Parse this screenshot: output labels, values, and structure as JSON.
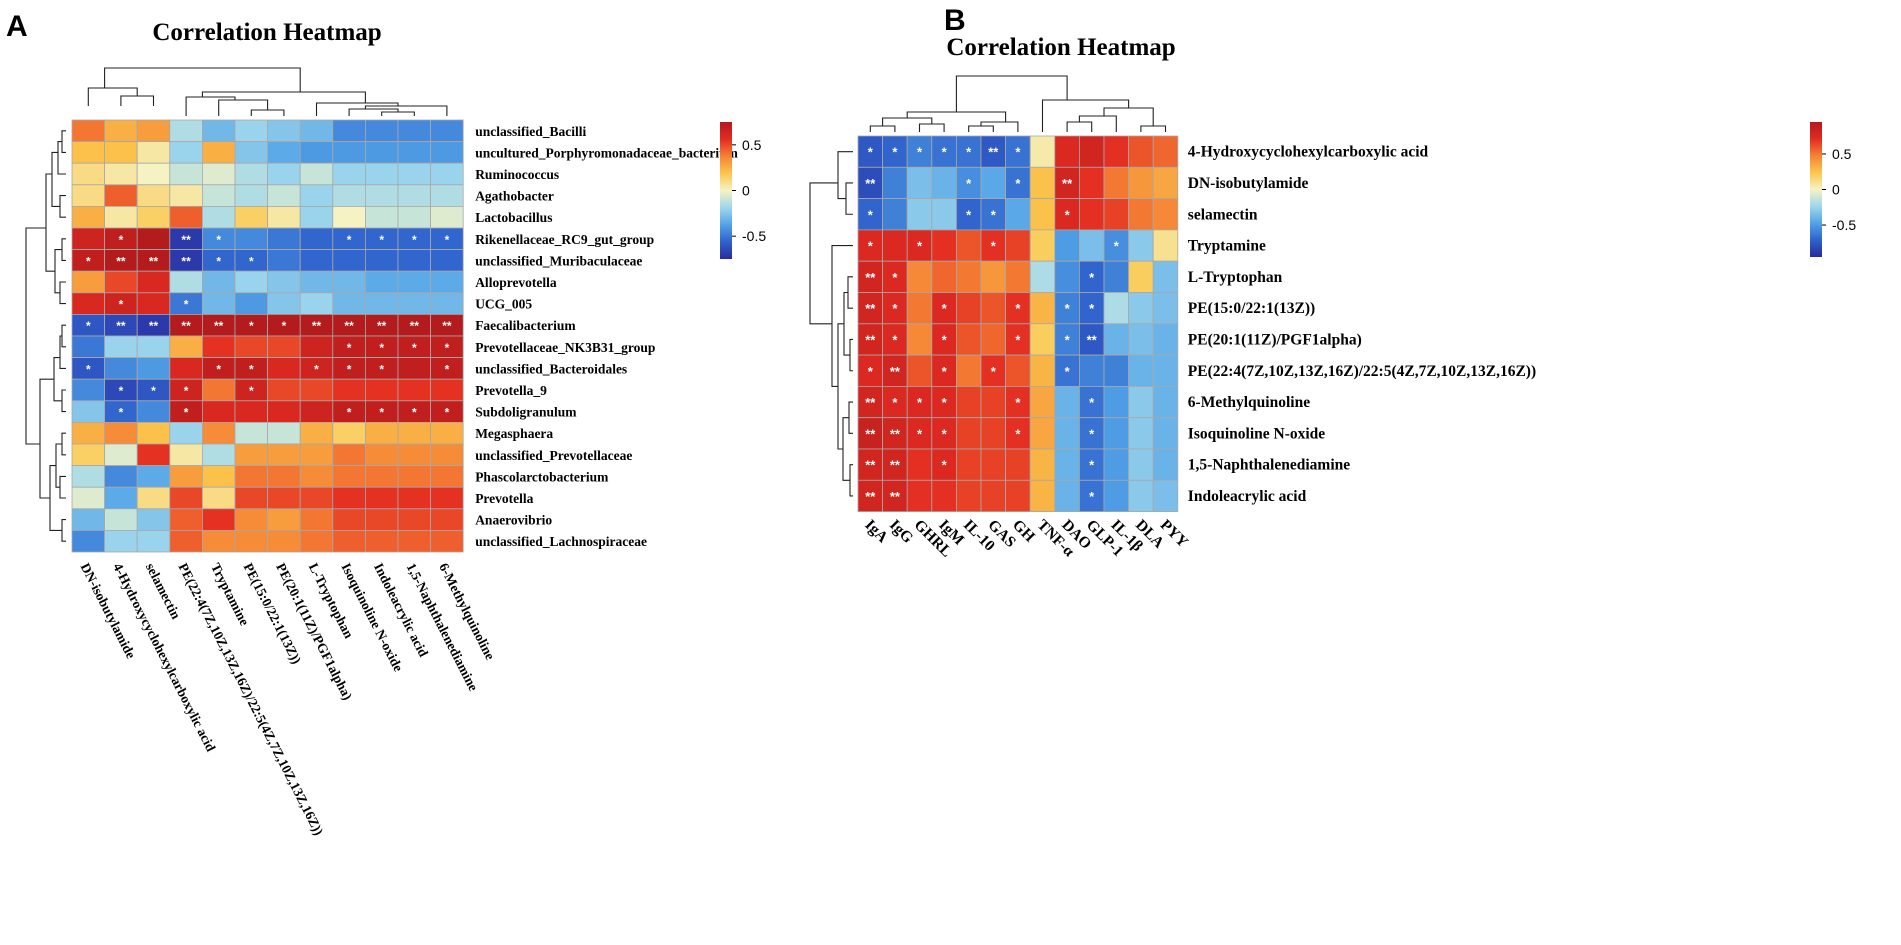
{
  "palette": [
    "#2a2a9f",
    "#2f62cc",
    "#52a3e6",
    "#9fd6ec",
    "#f5f3c4",
    "#fbc64c",
    "#f58235",
    "#e32b21",
    "#b31b1d"
  ],
  "chart_data": [
    {
      "panel": "A",
      "type": "heatmap",
      "title": "Correlation Heatmap",
      "rows": [
        "unclassified_Bacilli",
        "uncultured_Porphyromonadaceae_bacterium",
        "Ruminococcus",
        "Agathobacter",
        "Lactobacillus",
        "Rikenellaceae_RC9_gut_group",
        "unclassified_Muribaculaceae",
        "Alloprevotella",
        "UCG_005",
        "Faecalibacterium",
        "Prevotellaceae_NK3B31_group",
        "unclassified_Bacteroidales",
        "Prevotella_9",
        "Subdoligranulum",
        "Megasphaera",
        "unclassified_Prevotellaceae",
        "Phascolarctobacterium",
        "Prevotella",
        "Anaerovibrio",
        "unclassified_Lachnospiraceae"
      ],
      "columns": [
        "DN-isobutylamide",
        "4-Hydroxycyclohexylcarboxylic acid",
        "selamectin",
        "PE(22:4(7Z,10Z,13Z,16Z)/22:5(4Z,7Z,10Z,13Z,16Z))",
        "Tryptamine",
        "PE(15:0/22:1(13Z))",
        "PE(20:1(11Z)/PGF1alpha)",
        "L-Tryptophan",
        "Isoquinoline N-oxide",
        "Indoleacrylic acid",
        "1,5-Naphthalenediamine",
        "6-Methylquinoline"
      ],
      "values": [
        [
          0.4,
          0.25,
          0.3,
          -0.15,
          -0.3,
          -0.2,
          -0.25,
          -0.3,
          -0.45,
          -0.45,
          -0.45,
          -0.45
        ],
        [
          0.2,
          0.2,
          0.05,
          -0.2,
          0.25,
          -0.25,
          -0.35,
          -0.4,
          -0.4,
          -0.4,
          -0.4,
          -0.4
        ],
        [
          0.1,
          0.05,
          0.0,
          -0.1,
          -0.05,
          -0.15,
          -0.2,
          -0.1,
          -0.2,
          -0.2,
          -0.2,
          -0.2
        ],
        [
          0.1,
          0.45,
          0.1,
          0.05,
          -0.1,
          -0.15,
          -0.1,
          -0.2,
          -0.15,
          -0.15,
          -0.15,
          -0.15
        ],
        [
          0.25,
          0.05,
          0.15,
          0.45,
          -0.15,
          0.15,
          0.05,
          -0.2,
          0.0,
          -0.1,
          -0.1,
          -0.05
        ],
        [
          0.65,
          0.7,
          0.75,
          -0.7,
          -0.45,
          -0.45,
          -0.5,
          -0.55,
          -0.55,
          -0.55,
          -0.55,
          -0.55
        ],
        [
          0.7,
          0.75,
          0.75,
          -0.7,
          -0.55,
          -0.55,
          -0.5,
          -0.55,
          -0.55,
          -0.55,
          -0.55,
          -0.55
        ],
        [
          0.3,
          0.5,
          0.6,
          -0.15,
          -0.3,
          -0.2,
          -0.25,
          -0.3,
          -0.3,
          -0.35,
          -0.35,
          -0.35
        ],
        [
          0.6,
          0.65,
          0.6,
          -0.5,
          -0.3,
          -0.4,
          -0.25,
          -0.2,
          -0.3,
          -0.3,
          -0.3,
          -0.3
        ],
        [
          -0.6,
          -0.65,
          -0.7,
          0.85,
          0.8,
          0.75,
          0.75,
          0.8,
          0.8,
          0.8,
          0.82,
          0.85
        ],
        [
          -0.5,
          -0.2,
          -0.2,
          0.25,
          0.55,
          0.5,
          0.5,
          0.65,
          0.7,
          0.7,
          0.7,
          0.7
        ],
        [
          -0.6,
          -0.45,
          -0.4,
          0.6,
          0.7,
          0.7,
          0.6,
          0.65,
          0.7,
          0.7,
          0.7,
          0.7
        ],
        [
          -0.45,
          -0.65,
          -0.6,
          0.65,
          0.4,
          0.65,
          0.5,
          0.5,
          0.55,
          0.55,
          0.55,
          0.55
        ],
        [
          -0.25,
          -0.55,
          -0.45,
          0.7,
          0.6,
          0.6,
          0.6,
          0.65,
          0.7,
          0.7,
          0.7,
          0.7
        ],
        [
          0.25,
          0.35,
          0.2,
          -0.2,
          0.35,
          -0.1,
          -0.1,
          0.25,
          0.15,
          0.25,
          0.25,
          0.25
        ],
        [
          0.15,
          -0.05,
          0.55,
          0.05,
          -0.15,
          0.3,
          0.3,
          0.3,
          0.4,
          0.35,
          0.35,
          0.35
        ],
        [
          -0.15,
          -0.45,
          -0.35,
          0.3,
          0.2,
          0.4,
          0.4,
          0.35,
          0.4,
          0.4,
          0.4,
          0.4
        ],
        [
          -0.05,
          -0.35,
          0.1,
          0.5,
          0.1,
          0.5,
          0.5,
          0.5,
          0.55,
          0.55,
          0.55,
          0.55
        ],
        [
          -0.3,
          -0.1,
          -0.25,
          0.45,
          0.55,
          0.35,
          0.3,
          0.4,
          0.5,
          0.5,
          0.5,
          0.5
        ],
        [
          -0.45,
          -0.2,
          -0.2,
          0.45,
          0.35,
          0.35,
          0.35,
          0.4,
          0.45,
          0.45,
          0.45,
          0.45
        ]
      ],
      "significance": [
        [
          "",
          "",
          "",
          "",
          "",
          "",
          "",
          "",
          "",
          "",
          "",
          ""
        ],
        [
          "",
          "",
          "",
          "",
          "",
          "",
          "",
          "",
          "",
          "",
          "",
          ""
        ],
        [
          "",
          "",
          "",
          "",
          "",
          "",
          "",
          "",
          "",
          "",
          "",
          ""
        ],
        [
          "",
          "",
          "",
          "",
          "",
          "",
          "",
          "",
          "",
          "",
          "",
          ""
        ],
        [
          "",
          "",
          "",
          "",
          "",
          "",
          "",
          "",
          "",
          "",
          "",
          ""
        ],
        [
          "",
          "*",
          "",
          "**",
          "*",
          "",
          "",
          "",
          "*",
          "*",
          "*",
          "*"
        ],
        [
          "*",
          "**",
          "**",
          "**",
          "*",
          "*",
          "",
          "",
          "",
          "",
          "",
          ""
        ],
        [
          "",
          "",
          "",
          "",
          "",
          "",
          "",
          "",
          "",
          "",
          "",
          ""
        ],
        [
          "",
          "*",
          "",
          "*",
          "",
          "",
          "",
          "",
          "",
          "",
          "",
          ""
        ],
        [
          "*",
          "**",
          "**",
          "**",
          "**",
          "*",
          "*",
          "**",
          "**",
          "**",
          "**",
          "**"
        ],
        [
          "",
          "",
          "",
          "",
          "",
          "",
          "",
          "",
          "*",
          "*",
          "*",
          "*"
        ],
        [
          "*",
          "",
          "",
          "",
          "*",
          "*",
          "",
          "*",
          "*",
          "*",
          "",
          "*"
        ],
        [
          "",
          "*",
          "*",
          "*",
          "",
          "*",
          "",
          "",
          "",
          "",
          "",
          ""
        ],
        [
          "",
          "*",
          "",
          "*",
          "",
          "",
          "",
          "",
          "*",
          "*",
          "*",
          "*"
        ],
        [
          "",
          "",
          "",
          "",
          "",
          "",
          "",
          "",
          "",
          "",
          "",
          ""
        ],
        [
          "",
          "",
          "",
          "",
          "",
          "",
          "",
          "",
          "",
          "",
          "",
          ""
        ],
        [
          "",
          "",
          "",
          "",
          "",
          "",
          "",
          "",
          "",
          "",
          "",
          ""
        ],
        [
          "",
          "",
          "",
          "",
          "",
          "",
          "",
          "",
          "",
          "",
          "",
          ""
        ],
        [
          "",
          "",
          "",
          "",
          "",
          "",
          "",
          "",
          "",
          "",
          "",
          ""
        ],
        [
          "",
          "",
          "",
          "",
          "",
          "",
          "",
          "",
          "",
          "",
          "",
          ""
        ]
      ],
      "colorbar": {
        "range": [
          -0.75,
          0.75
        ],
        "ticks": [
          0.5,
          0,
          -0.5
        ],
        "tick_labels": [
          "0.5",
          "0",
          "-0.5"
        ]
      }
    },
    {
      "panel": "B",
      "type": "heatmap",
      "title": "Correlation Heatmap",
      "rows": [
        "4-Hydroxycyclohexylcarboxylic acid",
        "DN-isobutylamide",
        "selamectin",
        "Tryptamine",
        "L-Tryptophan",
        "PE(15:0/22:1(13Z))",
        "PE(20:1(11Z)/PGF1alpha)",
        "PE(22:4(7Z,10Z,13Z,16Z)/22:5(4Z,7Z,10Z,13Z,16Z))",
        "6-Methylquinoline",
        "Isoquinoline N-oxide",
        "1,5-Naphthalenediamine",
        "Indoleacrylic acid"
      ],
      "columns": [
        "IgA",
        "IgG",
        "GHRL",
        "IgM",
        "IL-10",
        "GAS",
        "GH",
        "TNF-α",
        "DAO",
        "GLP-1",
        "IL-1β",
        "DLA",
        "PYY"
      ],
      "values": [
        [
          -0.75,
          -0.7,
          -0.6,
          -0.65,
          -0.65,
          -0.75,
          -0.65,
          0.05,
          0.75,
          0.8,
          0.7,
          0.6,
          0.55
        ],
        [
          -0.8,
          -0.6,
          -0.35,
          -0.4,
          -0.55,
          -0.45,
          -0.65,
          0.25,
          0.8,
          0.7,
          0.5,
          0.4,
          0.35
        ],
        [
          -0.7,
          -0.6,
          -0.3,
          -0.3,
          -0.7,
          -0.65,
          -0.45,
          0.25,
          0.75,
          0.7,
          0.65,
          0.5,
          0.45
        ],
        [
          0.75,
          0.75,
          0.75,
          0.7,
          0.6,
          0.7,
          0.65,
          0.2,
          -0.5,
          -0.35,
          -0.55,
          -0.3,
          0.1
        ],
        [
          0.8,
          0.75,
          0.45,
          0.55,
          0.5,
          0.4,
          0.5,
          -0.2,
          -0.55,
          -0.7,
          -0.6,
          0.2,
          -0.35
        ],
        [
          0.8,
          0.75,
          0.5,
          0.75,
          0.65,
          0.6,
          0.7,
          0.3,
          -0.6,
          -0.7,
          -0.2,
          -0.3,
          -0.35
        ],
        [
          0.8,
          0.75,
          0.45,
          0.75,
          0.6,
          0.55,
          0.7,
          0.2,
          -0.6,
          -0.75,
          -0.4,
          -0.35,
          -0.4
        ],
        [
          0.75,
          0.8,
          0.6,
          0.75,
          0.5,
          0.7,
          0.6,
          0.3,
          -0.65,
          -0.6,
          -0.6,
          -0.4,
          -0.4
        ],
        [
          0.8,
          0.75,
          0.75,
          0.75,
          0.65,
          0.65,
          0.7,
          0.35,
          -0.4,
          -0.65,
          -0.5,
          -0.3,
          -0.4
        ],
        [
          0.85,
          0.8,
          0.75,
          0.75,
          0.65,
          0.65,
          0.7,
          0.35,
          -0.4,
          -0.65,
          -0.5,
          -0.3,
          -0.4
        ],
        [
          0.8,
          0.8,
          0.7,
          0.75,
          0.65,
          0.65,
          0.65,
          0.3,
          -0.4,
          -0.65,
          -0.5,
          -0.3,
          -0.4
        ],
        [
          0.8,
          0.8,
          0.7,
          0.7,
          0.65,
          0.65,
          0.65,
          0.3,
          -0.4,
          -0.65,
          -0.5,
          -0.3,
          -0.35
        ]
      ],
      "significance": [
        [
          "*",
          "*",
          "*",
          "*",
          "*",
          "**",
          "*",
          "",
          "",
          "",
          "",
          "",
          ""
        ],
        [
          "**",
          "",
          "",
          "",
          "*",
          "",
          "*",
          "",
          "**",
          "",
          "",
          "",
          ""
        ],
        [
          "*",
          "",
          "",
          "",
          "*",
          "*",
          "",
          "",
          "*",
          "",
          "",
          "",
          ""
        ],
        [
          "*",
          "",
          "*",
          "",
          "",
          "*",
          "",
          "",
          "",
          "",
          "*",
          "",
          ""
        ],
        [
          "**",
          "*",
          "",
          "",
          "",
          "",
          "",
          "",
          "",
          "*",
          "",
          "",
          ""
        ],
        [
          "**",
          "*",
          "",
          "*",
          "",
          "",
          "*",
          "",
          "*",
          "*",
          "",
          "",
          ""
        ],
        [
          "**",
          "*",
          "",
          "*",
          "",
          "",
          "*",
          "",
          "*",
          "**",
          "",
          "",
          ""
        ],
        [
          "*",
          "**",
          "",
          "*",
          "",
          "*",
          "",
          "",
          "*",
          "",
          "",
          "",
          ""
        ],
        [
          "**",
          "*",
          "*",
          "*",
          "",
          "",
          "*",
          "",
          "",
          "*",
          "",
          "",
          ""
        ],
        [
          "**",
          "**",
          "*",
          "*",
          "",
          "",
          "*",
          "",
          "",
          "*",
          "",
          "",
          ""
        ],
        [
          "**",
          "**",
          "",
          "*",
          "",
          "",
          "",
          "",
          "",
          "*",
          "",
          "",
          ""
        ],
        [
          "**",
          "**",
          "",
          "",
          "",
          "",
          "",
          "",
          "",
          "*",
          "",
          "",
          ""
        ]
      ],
      "colorbar": {
        "range": [
          -0.95,
          0.95
        ],
        "ticks": [
          0.5,
          0,
          -0.5
        ],
        "tick_labels": [
          "0.5",
          "0",
          "-0.5"
        ]
      }
    }
  ]
}
